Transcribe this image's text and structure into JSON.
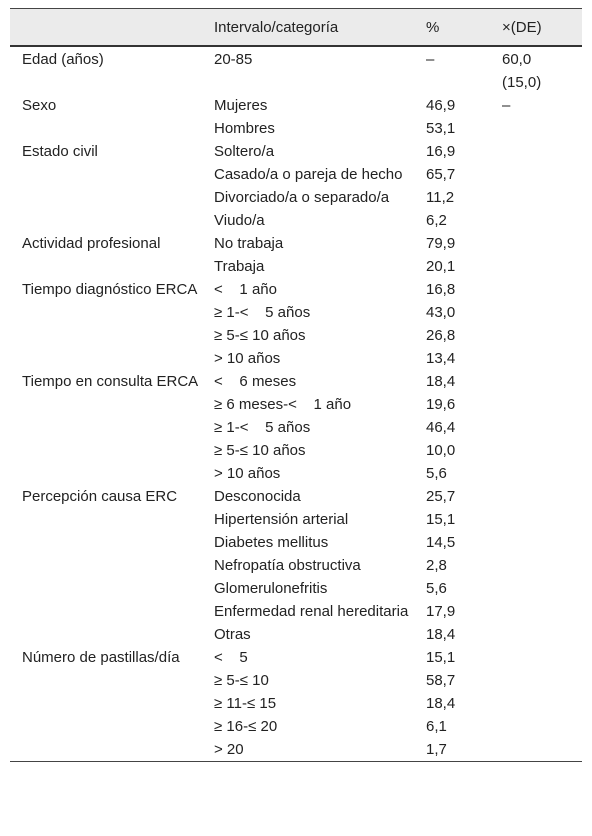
{
  "table": {
    "header": [
      "Intervalo/categoría",
      "%",
      "×(DE)"
    ],
    "groups": [
      {
        "variable": "Edad (años)",
        "rows": [
          {
            "category": "20-85",
            "percent": "–",
            "mean": "60,0 (15,0)"
          }
        ]
      },
      {
        "variable": "Sexo",
        "rows": [
          {
            "category": "Mujeres",
            "percent": "46,9",
            "mean": "–"
          },
          {
            "category": "Hombres",
            "percent": "53,1"
          }
        ]
      },
      {
        "variable": "Estado civil",
        "rows": [
          {
            "category": "Soltero/a",
            "percent": "16,9"
          },
          {
            "category": "Casado/a o pareja de hecho",
            "percent": "65,7"
          },
          {
            "category": "Divorciado/a o separado/a",
            "percent": "11,2"
          },
          {
            "category": "Viudo/a",
            "percent": "6,2"
          }
        ]
      },
      {
        "variable": "Actividad profesional",
        "rows": [
          {
            "category": "No trabaja",
            "percent": "79,9"
          },
          {
            "category": "Trabaja",
            "percent": "20,1"
          }
        ]
      },
      {
        "variable": "Tiempo diagnóstico ERCA",
        "rows": [
          {
            "category": "<    1 año",
            "percent": "16,8"
          },
          {
            "category": "≥ 1-<    5 años",
            "percent": "43,0"
          },
          {
            "category": "≥ 5-≤ 10 años",
            "percent": "26,8"
          },
          {
            "category": "> 10 años",
            "percent": "13,4"
          }
        ]
      },
      {
        "variable": "Tiempo en consulta ERCA",
        "rows": [
          {
            "category": "<    6 meses",
            "percent": "18,4"
          },
          {
            "category": "≥ 6 meses-<    1 año",
            "percent": "19,6"
          },
          {
            "category": "≥ 1-<    5 años",
            "percent": "46,4"
          },
          {
            "category": "≥ 5-≤ 10 años",
            "percent": "10,0"
          },
          {
            "category": "> 10 años",
            "percent": "5,6"
          }
        ]
      },
      {
        "variable": "Percepción causa ERC",
        "rows": [
          {
            "category": "Desconocida",
            "percent": "25,7"
          },
          {
            "category": "Hipertensión arterial",
            "percent": "15,1"
          },
          {
            "category": "Diabetes mellitus",
            "percent": "14,5"
          },
          {
            "category": "Nefropatía obstructiva",
            "percent": "2,8"
          },
          {
            "category": "Glomerulonefritis",
            "percent": "5,6"
          },
          {
            "category": "Enfermedad renal hereditaria",
            "percent": "17,9"
          },
          {
            "category": "Otras",
            "percent": "18,4"
          }
        ]
      },
      {
        "variable": "Número de pastillas/día",
        "rows": [
          {
            "category": "<    5",
            "percent": "15,1"
          },
          {
            "category": "≥ 5-≤ 10",
            "percent": "58,7"
          },
          {
            "category": "≥ 11-≤ 15",
            "percent": "18,4"
          },
          {
            "category": "≥ 16-≤ 20",
            "percent": "6,1"
          },
          {
            "category": "> 20",
            "percent": "1,7"
          }
        ]
      }
    ]
  }
}
